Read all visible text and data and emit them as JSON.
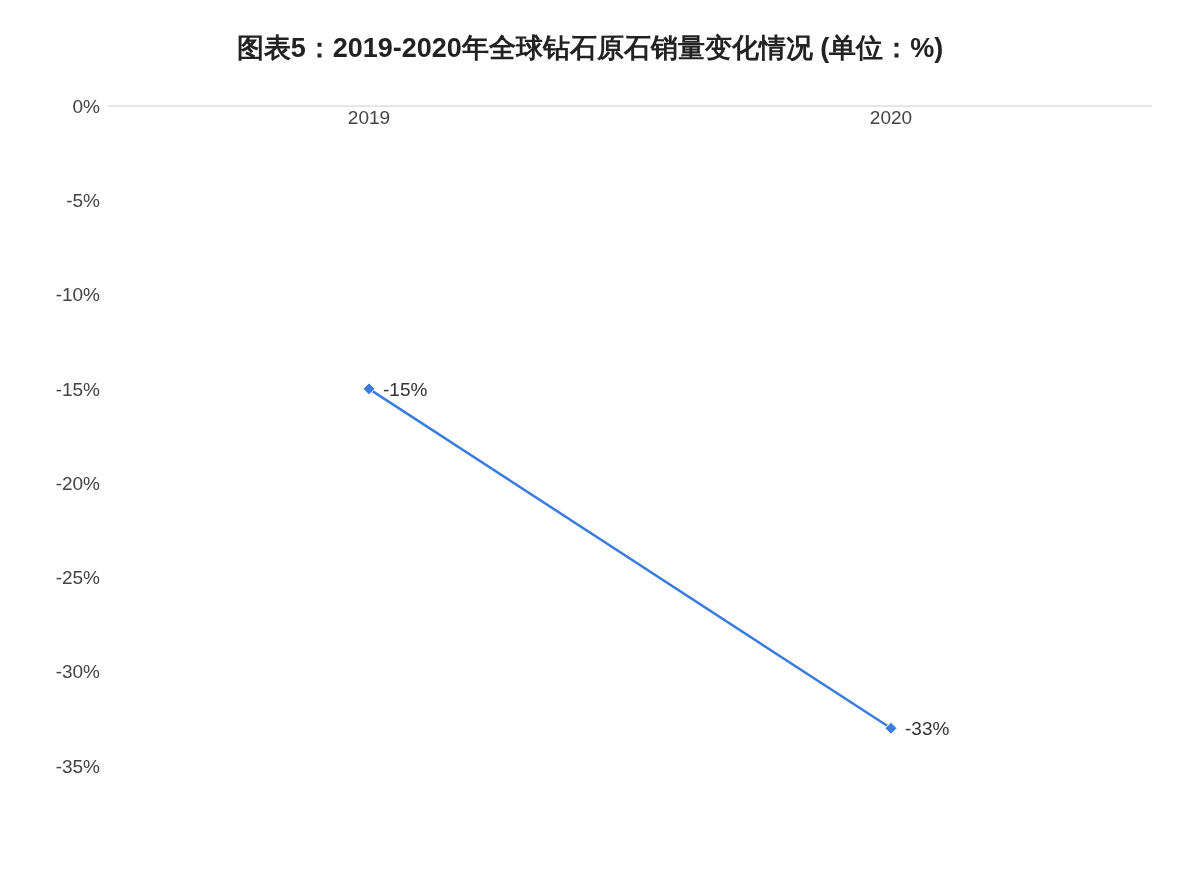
{
  "chart_data": {
    "type": "line",
    "title": "图表5：2019-2020年全球钻石原石销量变化情况 (单位：%)",
    "categories": [
      "2019",
      "2020"
    ],
    "series": [
      {
        "color": "#3b7ddd",
        "values": [
          -15,
          -33
        ],
        "value_labels": [
          "-15%",
          "-33%"
        ]
      }
    ],
    "ylim": [
      -35,
      0
    ],
    "yticks": [
      {
        "value": 0,
        "label": "0%"
      },
      {
        "value": -5,
        "label": "-5%"
      },
      {
        "value": -10,
        "label": "-10%"
      },
      {
        "value": -15,
        "label": "-15%"
      },
      {
        "value": -20,
        "label": "-20%"
      },
      {
        "value": -25,
        "label": "-25%"
      },
      {
        "value": -30,
        "label": "-30%"
      },
      {
        "value": -35,
        "label": "-35%"
      }
    ],
    "marker": "diamond",
    "line_style": "solid",
    "grid": false,
    "legend": false
  }
}
